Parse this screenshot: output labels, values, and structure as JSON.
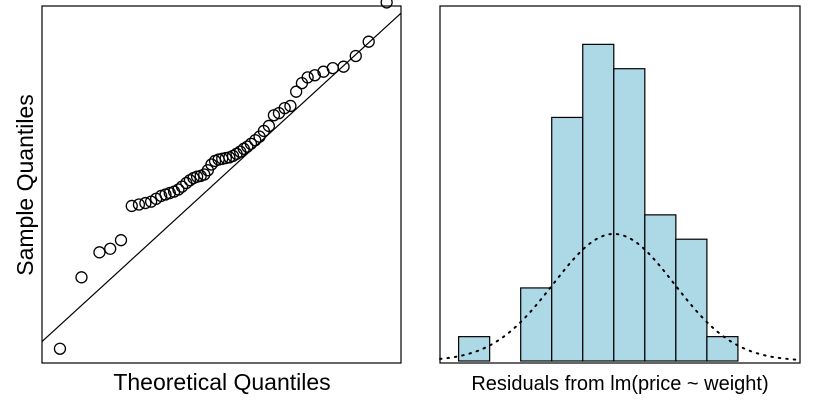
{
  "colors": {
    "background": "#ffffff",
    "ink": "#000000",
    "bar_fill": "#add8e6"
  },
  "chart_data": [
    {
      "type": "scatter",
      "title": "",
      "xlabel": "Theoretical Quantiles",
      "ylabel": "Sample Quantiles",
      "xlim": [
        -2.5,
        2.5
      ],
      "ylim": [
        -2.5,
        2.5
      ],
      "axes_visible": false,
      "grid": false,
      "reference_line": {
        "intercept": 0.1,
        "slope": 0.92
      },
      "points": [
        {
          "x": -2.25,
          "y": -2.3
        },
        {
          "x": -1.95,
          "y": -1.3
        },
        {
          "x": -1.7,
          "y": -0.95
        },
        {
          "x": -1.55,
          "y": -0.9
        },
        {
          "x": -1.4,
          "y": -0.78
        },
        {
          "x": -1.25,
          "y": -0.3
        },
        {
          "x": -1.15,
          "y": -0.28
        },
        {
          "x": -1.06,
          "y": -0.26
        },
        {
          "x": -0.98,
          "y": -0.24
        },
        {
          "x": -0.91,
          "y": -0.2
        },
        {
          "x": -0.84,
          "y": -0.16
        },
        {
          "x": -0.78,
          "y": -0.14
        },
        {
          "x": -0.72,
          "y": -0.12
        },
        {
          "x": -0.66,
          "y": -0.1
        },
        {
          "x": -0.6,
          "y": -0.07
        },
        {
          "x": -0.55,
          "y": -0.03
        },
        {
          "x": -0.49,
          "y": 0.02
        },
        {
          "x": -0.44,
          "y": 0.06
        },
        {
          "x": -0.39,
          "y": 0.09
        },
        {
          "x": -0.34,
          "y": 0.11
        },
        {
          "x": -0.29,
          "y": 0.12
        },
        {
          "x": -0.24,
          "y": 0.14
        },
        {
          "x": -0.19,
          "y": 0.2
        },
        {
          "x": -0.14,
          "y": 0.28
        },
        {
          "x": -0.09,
          "y": 0.33
        },
        {
          "x": -0.04,
          "y": 0.35
        },
        {
          "x": 0.01,
          "y": 0.36
        },
        {
          "x": 0.06,
          "y": 0.37
        },
        {
          "x": 0.11,
          "y": 0.38
        },
        {
          "x": 0.16,
          "y": 0.4
        },
        {
          "x": 0.21,
          "y": 0.43
        },
        {
          "x": 0.26,
          "y": 0.46
        },
        {
          "x": 0.31,
          "y": 0.5
        },
        {
          "x": 0.36,
          "y": 0.53
        },
        {
          "x": 0.41,
          "y": 0.57
        },
        {
          "x": 0.47,
          "y": 0.62
        },
        {
          "x": 0.53,
          "y": 0.67
        },
        {
          "x": 0.59,
          "y": 0.75
        },
        {
          "x": 0.66,
          "y": 0.82
        },
        {
          "x": 0.73,
          "y": 0.97
        },
        {
          "x": 0.8,
          "y": 1.0
        },
        {
          "x": 0.88,
          "y": 1.07
        },
        {
          "x": 0.96,
          "y": 1.1
        },
        {
          "x": 1.04,
          "y": 1.3
        },
        {
          "x": 1.12,
          "y": 1.42
        },
        {
          "x": 1.2,
          "y": 1.5
        },
        {
          "x": 1.3,
          "y": 1.53
        },
        {
          "x": 1.42,
          "y": 1.58
        },
        {
          "x": 1.55,
          "y": 1.63
        },
        {
          "x": 1.7,
          "y": 1.65
        },
        {
          "x": 1.87,
          "y": 1.8
        },
        {
          "x": 2.05,
          "y": 2.0
        },
        {
          "x": 2.3,
          "y": 2.55
        }
      ]
    },
    {
      "type": "bar",
      "subtype": "histogram",
      "title": "",
      "xlabel": "Residuals from lm(price ~ weight)",
      "ylabel": "",
      "axes_visible": false,
      "grid": false,
      "bin_edges": [
        -5,
        -4,
        -3,
        -2,
        -1,
        0,
        1,
        2,
        3,
        4
      ],
      "counts": [
        1,
        0,
        3,
        10,
        13,
        12,
        6,
        5,
        1
      ],
      "ylim": [
        0,
        14
      ],
      "normal_curve": {
        "mean": 0,
        "sd": 1.95,
        "scale": 25.5,
        "xlim": [
          -5.6,
          6
        ],
        "style": "dotted"
      }
    }
  ]
}
